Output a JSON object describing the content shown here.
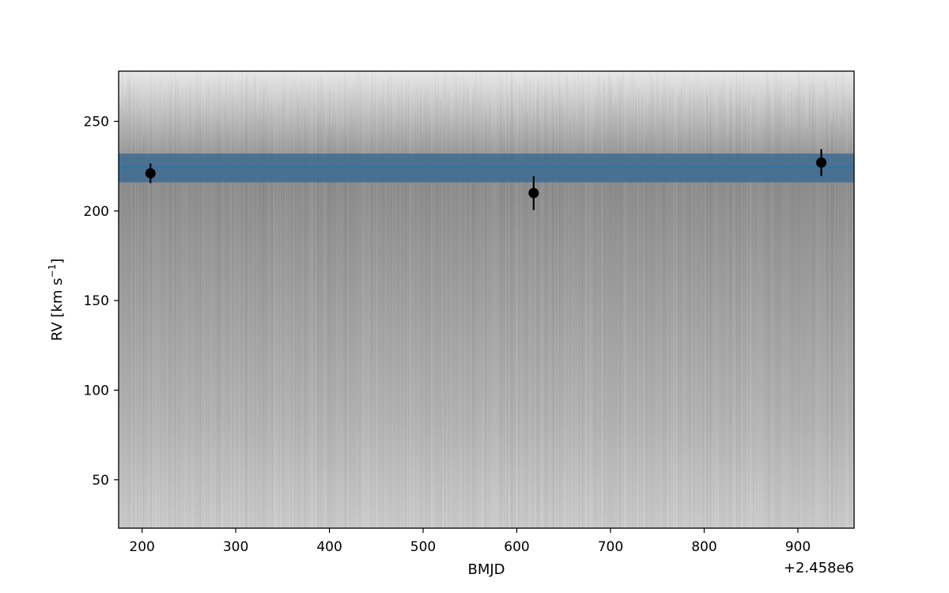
{
  "chart_data": {
    "type": "scatter",
    "xlabel": "BMJD",
    "ylabel_main": "RV [km s",
    "ylabel_sup": "−1",
    "ylabel_close": "]",
    "x_offset_label": "+2.458e6",
    "xlim": [
      175,
      960
    ],
    "ylim": [
      23,
      278
    ],
    "xticks": [
      200,
      300,
      400,
      500,
      600,
      700,
      800,
      900
    ],
    "yticks": [
      50,
      100,
      150,
      200,
      250
    ],
    "series": [
      {
        "name": "observations",
        "x": [
          209,
          618,
          925
        ],
        "y": [
          221,
          210,
          227
        ],
        "yerr": [
          5.5,
          9.5,
          7.5
        ],
        "color": "#000000"
      }
    ],
    "model": {
      "name": "mean RV fit",
      "value": 224.5,
      "band_low": 216,
      "band_high": 232,
      "line_color": "#1f77b4",
      "band_color": "#3d6b91"
    },
    "posterior_draws": {
      "description": "grey posterior RV curves",
      "color": "#000000",
      "range_low": 23,
      "range_high": 278
    }
  }
}
